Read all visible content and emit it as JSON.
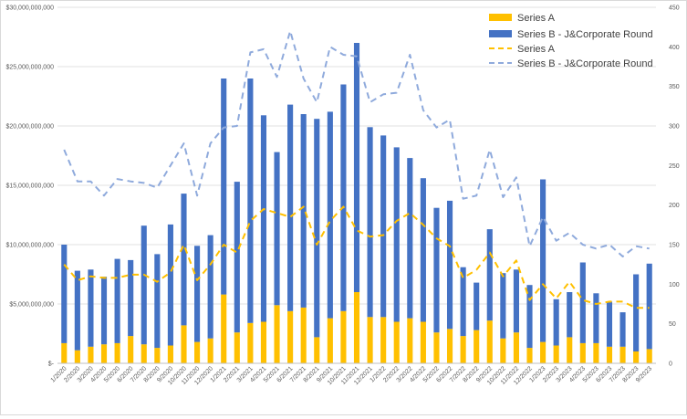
{
  "chart_data": {
    "type": "bar",
    "stacked": true,
    "categories": [
      "1/2020",
      "2/2020",
      "3/2020",
      "4/2020",
      "5/2020",
      "6/2020",
      "7/2020",
      "8/2020",
      "9/2020",
      "10/2020",
      "11/2020",
      "12/2020",
      "1/2021",
      "2/2021",
      "3/2021",
      "4/2021",
      "5/2021",
      "6/2021",
      "7/2021",
      "8/2021",
      "9/2021",
      "10/2021",
      "11/2021",
      "12/2021",
      "1/2022",
      "2/2022",
      "3/2022",
      "4/2022",
      "5/2022",
      "6/2022",
      "7/2022",
      "8/2022",
      "9/2022",
      "10/2022",
      "11/2022",
      "12/2022",
      "1/2023",
      "2/2023",
      "3/2023",
      "4/2023",
      "5/2023",
      "6/2023",
      "7/2023",
      "8/2023",
      "9/2023"
    ],
    "series": [
      {
        "name": "Series A",
        "type": "bar",
        "axis": "left",
        "color": "#FFC000",
        "values": [
          1700000000,
          1100000000,
          1400000000,
          1600000000,
          1700000000,
          2300000000,
          1600000000,
          1300000000,
          1500000000,
          3200000000,
          1800000000,
          2100000000,
          5800000000,
          2600000000,
          3400000000,
          3500000000,
          4900000000,
          4400000000,
          4700000000,
          2200000000,
          3800000000,
          4400000000,
          6000000000,
          3900000000,
          3900000000,
          3500000000,
          3800000000,
          3500000000,
          2600000000,
          2900000000,
          2300000000,
          2800000000,
          3600000000,
          2100000000,
          2600000000,
          1300000000,
          1800000000,
          1500000000,
          2200000000,
          1700000000,
          1700000000,
          1400000000,
          1400000000,
          1000000000,
          1200000000
        ]
      },
      {
        "name": "Series B - J&Corporate Round",
        "type": "bar",
        "axis": "left",
        "color": "#4472C4",
        "values": [
          8300000000,
          6700000000,
          6500000000,
          5700000000,
          7100000000,
          6400000000,
          10000000000,
          7900000000,
          10200000000,
          11100000000,
          8100000000,
          8700000000,
          18200000000,
          12700000000,
          20600000000,
          17400000000,
          12900000000,
          17400000000,
          16300000000,
          18400000000,
          17400000000,
          19100000000,
          21000000000,
          16000000000,
          15300000000,
          14700000000,
          13500000000,
          12100000000,
          10500000000,
          10800000000,
          5800000000,
          4000000000,
          7700000000,
          5500000000,
          5300000000,
          5300000000,
          13700000000,
          3900000000,
          3800000000,
          6800000000,
          4200000000,
          3800000000,
          2900000000,
          6500000000,
          7200000000
        ]
      },
      {
        "name": "Series A",
        "type": "line",
        "axis": "right",
        "color": "#FFC000",
        "dashed": true,
        "values": [
          125,
          105,
          110,
          108,
          108,
          112,
          112,
          103,
          115,
          150,
          105,
          125,
          150,
          140,
          180,
          195,
          190,
          185,
          198,
          150,
          180,
          198,
          168,
          160,
          162,
          180,
          190,
          175,
          158,
          148,
          108,
          118,
          140,
          110,
          130,
          80,
          100,
          82,
          103,
          80,
          75,
          78,
          78,
          70,
          70
        ]
      },
      {
        "name": "Series B - J&Corporate Round",
        "type": "line",
        "axis": "right",
        "color": "#8FAADC",
        "dashed": true,
        "values": [
          270,
          230,
          230,
          212,
          233,
          230,
          228,
          222,
          250,
          278,
          212,
          278,
          298,
          300,
          393,
          397,
          362,
          420,
          360,
          330,
          400,
          390,
          388,
          330,
          340,
          342,
          390,
          320,
          298,
          308,
          208,
          212,
          270,
          210,
          235,
          148,
          185,
          155,
          165,
          150,
          145,
          150,
          135,
          148,
          145
        ]
      }
    ],
    "y_left": {
      "min": 0,
      "max": 30000000000,
      "ticks": [
        "$-",
        "$5,000,000,000",
        "$10,000,000,000",
        "$15,000,000,000",
        "$20,000,000,000",
        "$25,000,000,000",
        "$30,000,000,000"
      ]
    },
    "y_right": {
      "min": 0,
      "max": 450,
      "ticks": [
        "0",
        "50",
        "100",
        "150",
        "200",
        "250",
        "300",
        "350",
        "400",
        "450"
      ]
    },
    "grid": true,
    "legend_position": "top-right",
    "title": "",
    "xlabel": "",
    "ylabel": ""
  },
  "legend": [
    {
      "label": "Series A",
      "kind": "bar",
      "color": "#FFC000"
    },
    {
      "label": "Series B - J&Corporate Round",
      "kind": "bar",
      "color": "#4472C4"
    },
    {
      "label": "Series A",
      "kind": "line",
      "color": "#FFC000"
    },
    {
      "label": "Series B - J&Corporate Round",
      "kind": "line",
      "color": "#8FAADC"
    }
  ]
}
